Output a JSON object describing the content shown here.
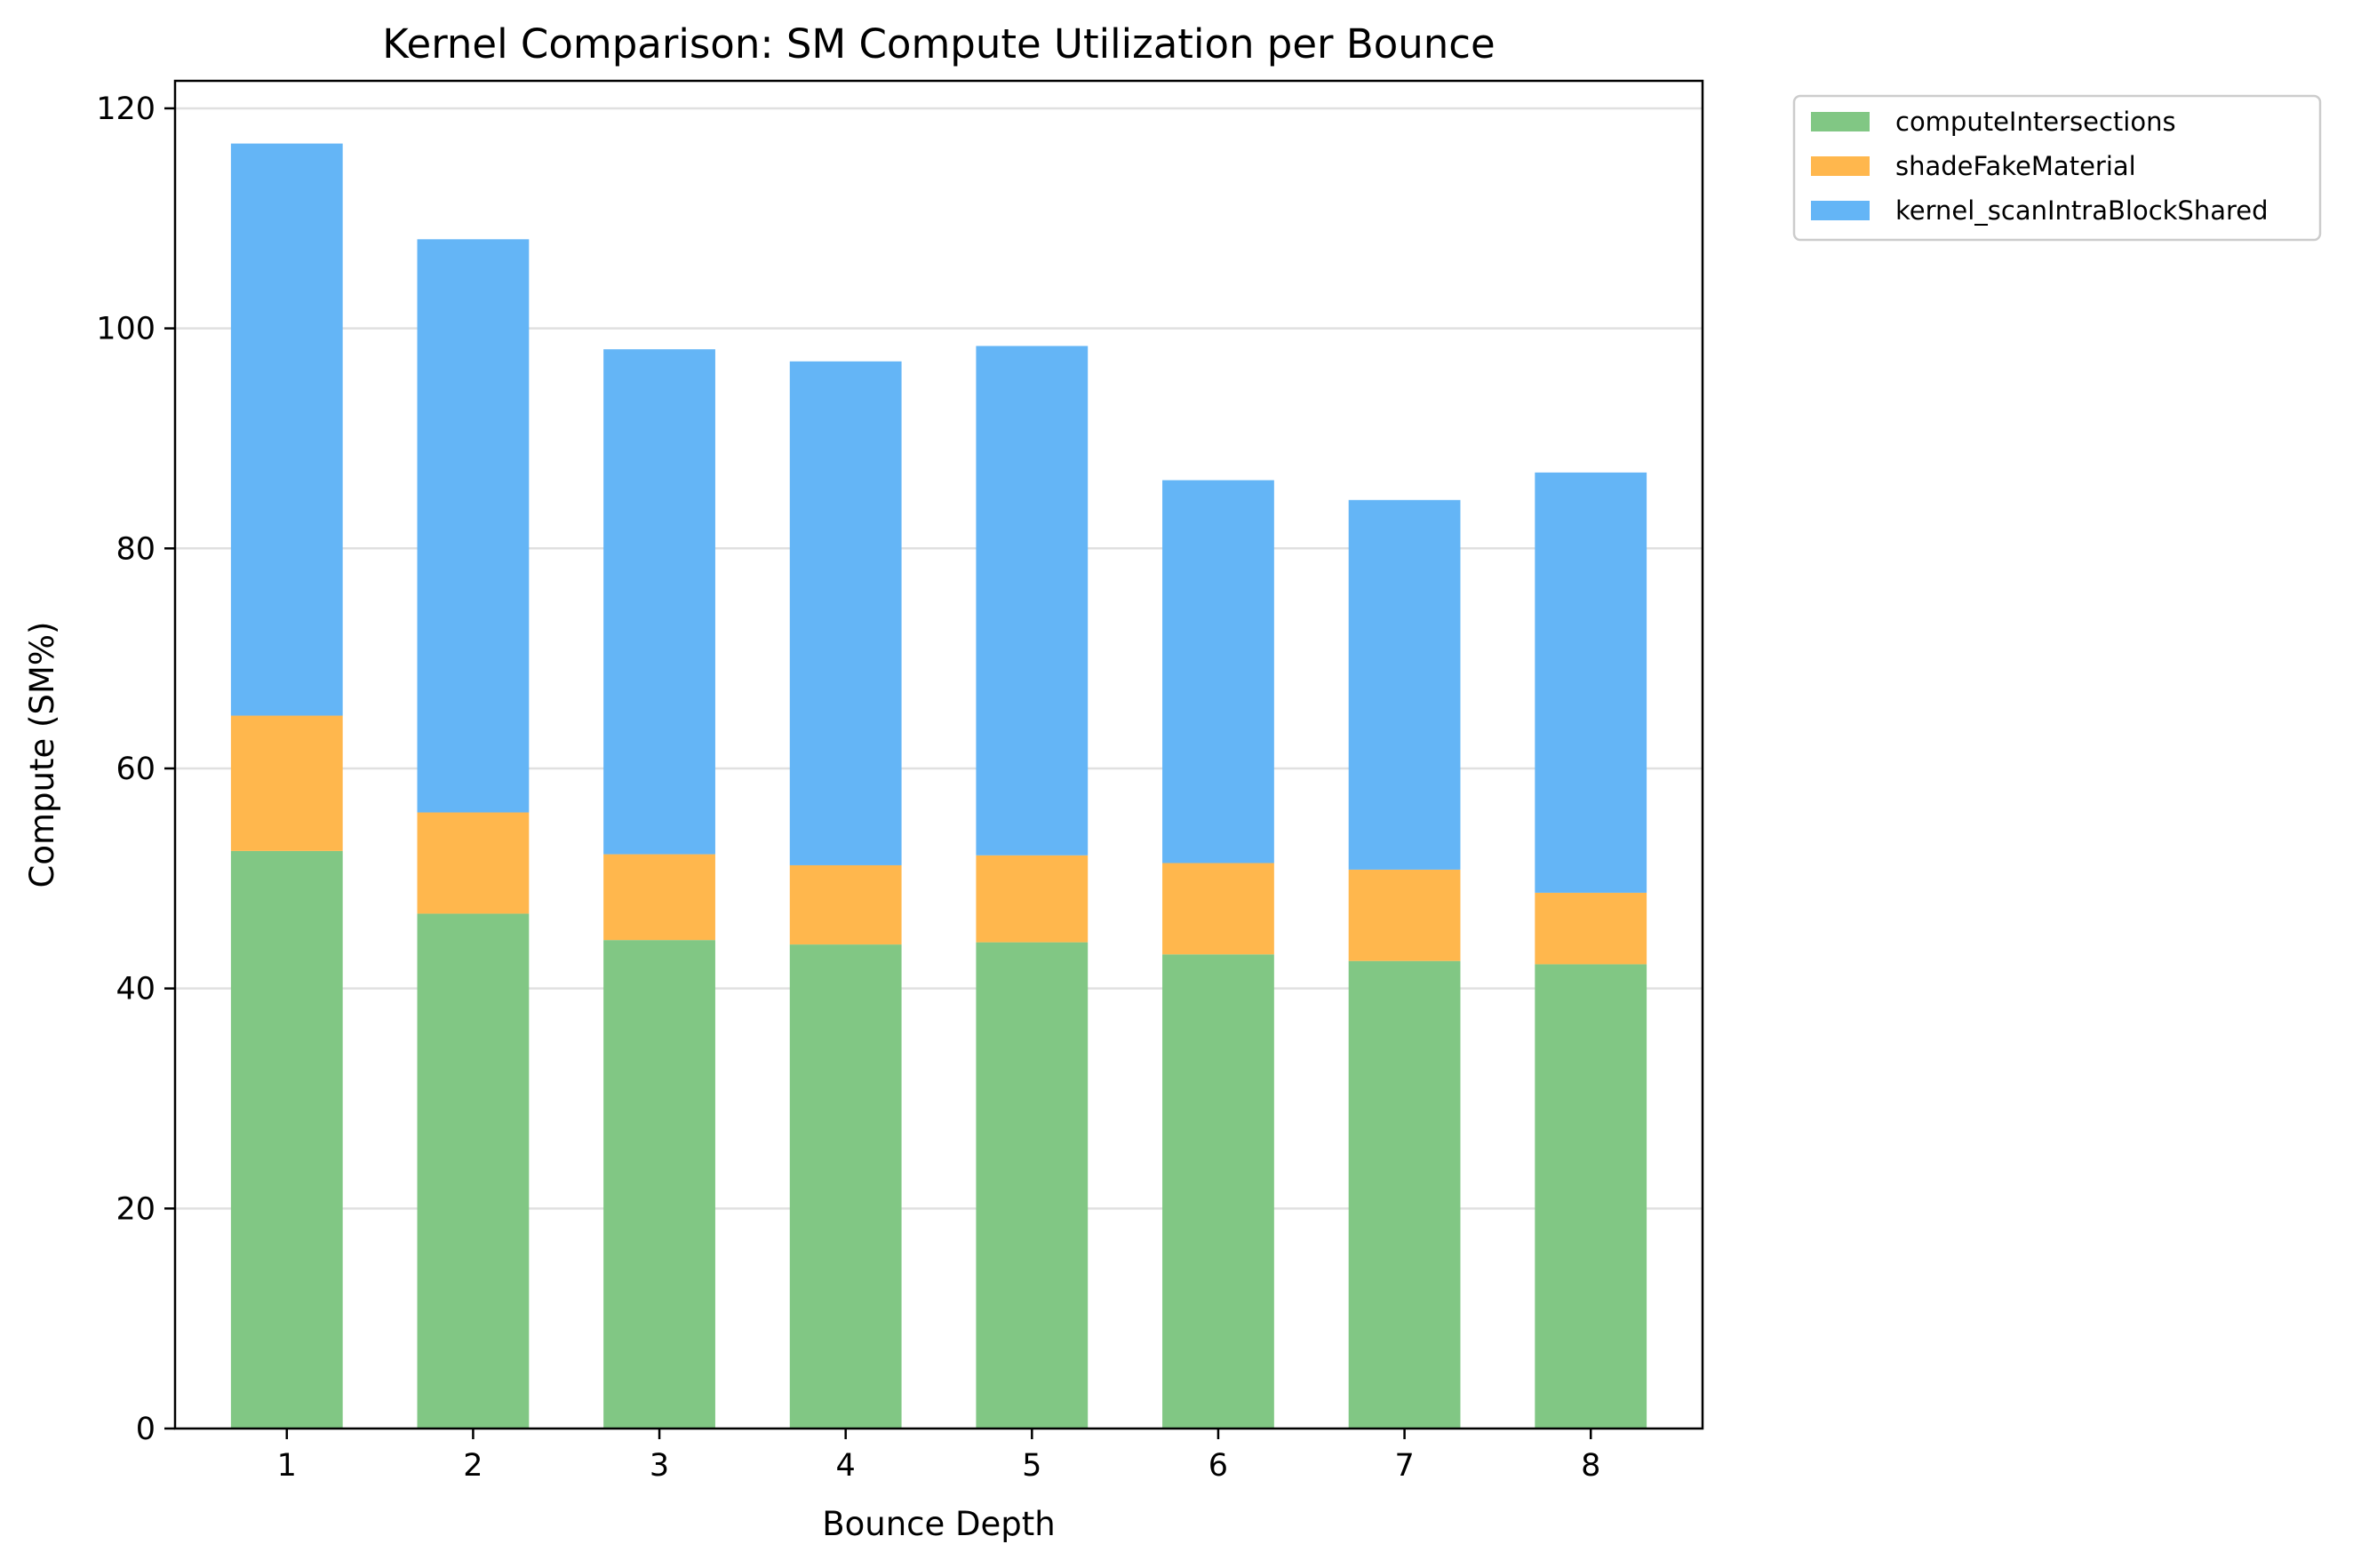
{
  "chart_data": {
    "type": "bar",
    "stacked": true,
    "title": "Kernel Comparison: SM Compute Utilization per Bounce",
    "xlabel": "Bounce Depth",
    "ylabel": "Compute (SM%)",
    "categories": [
      "1",
      "2",
      "3",
      "4",
      "5",
      "6",
      "7",
      "8"
    ],
    "ylim": [
      0,
      122.5
    ],
    "yticks": [
      0,
      20,
      40,
      60,
      80,
      100,
      120
    ],
    "grid": "y",
    "legend_position": "outside-top-right",
    "series": [
      {
        "name": "computeIntersections",
        "color": "#81c784",
        "values": [
          52.5,
          46.8,
          44.4,
          44.0,
          44.2,
          43.1,
          42.5,
          42.2
        ]
      },
      {
        "name": "shadeFakeMaterial",
        "color": "#ffb74d",
        "values": [
          12.3,
          9.2,
          7.8,
          7.2,
          7.9,
          8.3,
          8.3,
          6.5
        ]
      },
      {
        "name": "kernel_scanIntraBlockShared",
        "color": "#64b5f6",
        "values": [
          52.0,
          52.1,
          45.9,
          45.8,
          46.3,
          34.8,
          33.6,
          38.2
        ]
      }
    ]
  }
}
